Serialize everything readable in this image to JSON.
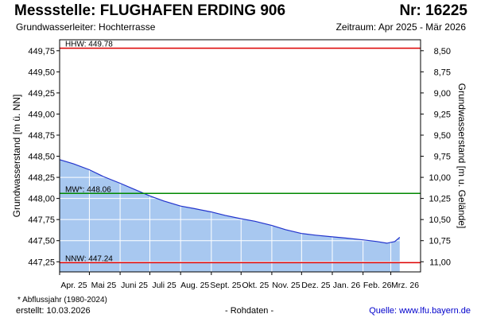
{
  "header": {
    "title": "Messstelle: FLUGHAFEN ERDING 906",
    "station_no": "Nr: 16225",
    "aquifer": "Grundwasserleiter:   Hochterrasse",
    "period": "Zeitraum: Apr 2025 - Mär 2026"
  },
  "footer": {
    "note": "* Abflussjahr (1980-2024)",
    "created": "erstellt:  10.03.2026",
    "raw": "- Rohdaten -",
    "source": "Quelle:  www.lfu.bayern.de"
  },
  "colors": {
    "fill": "#a8c8f0",
    "line": "#2233cc",
    "hhw": "#dd0000",
    "nnw": "#dd0000",
    "mw": "#008800",
    "grid": "#ffffff"
  },
  "chart_data": {
    "type": "area",
    "ylabel": "Grundwasserstand [m ü. NN]",
    "y2label": "Grundwasserstand [m u. Gelände]",
    "ylim": [
      447.13,
      449.88
    ],
    "yticks": [
      "449,75",
      "449,50",
      "449,25",
      "449,00",
      "448,75",
      "448,50",
      "448,25",
      "448,00",
      "447,75",
      "447,50",
      "447,25"
    ],
    "y2ticks": [
      "8,50",
      "8,75",
      "9,00",
      "9,25",
      "9,50",
      "9,75",
      "10,00",
      "10,25",
      "10,50",
      "10,75",
      "11,00"
    ],
    "categories": [
      "Apr. 25",
      "Mai 25",
      "Juni 25",
      "Juli 25",
      "Aug. 25",
      "Sept. 25",
      "Okt. 25",
      "Nov. 25",
      "Dez. 25",
      "Jan. 26",
      "Feb. 26",
      "Mrz. 26"
    ],
    "series": [
      {
        "x": [
          "2025-04-01",
          "2025-04-15",
          "2025-05-01",
          "2025-05-15",
          "2025-06-01",
          "2025-06-15",
          "2025-07-01",
          "2025-07-15",
          "2025-08-01",
          "2025-08-15",
          "2025-09-01",
          "2025-09-15",
          "2025-10-01",
          "2025-10-15",
          "2025-11-01",
          "2025-11-15",
          "2025-12-01",
          "2025-12-15",
          "2026-01-01",
          "2026-01-15",
          "2026-02-01",
          "2026-02-15",
          "2026-02-25",
          "2026-03-05",
          "2026-03-10"
        ],
        "values": [
          448.46,
          448.41,
          448.34,
          448.26,
          448.18,
          448.11,
          448.03,
          447.97,
          447.91,
          447.88,
          447.84,
          447.8,
          447.76,
          447.73,
          447.68,
          447.63,
          447.585,
          447.565,
          447.545,
          447.53,
          447.51,
          447.49,
          447.47,
          447.49,
          447.54
        ]
      }
    ],
    "reference_lines": [
      {
        "label": "HHW: 449.78",
        "value": 449.78,
        "color": "#dd0000"
      },
      {
        "label": "MW*: 448.06",
        "value": 448.06,
        "color": "#008800"
      },
      {
        "label": "NNW: 447.24",
        "value": 447.24,
        "color": "#dd0000"
      }
    ],
    "grid": true
  }
}
